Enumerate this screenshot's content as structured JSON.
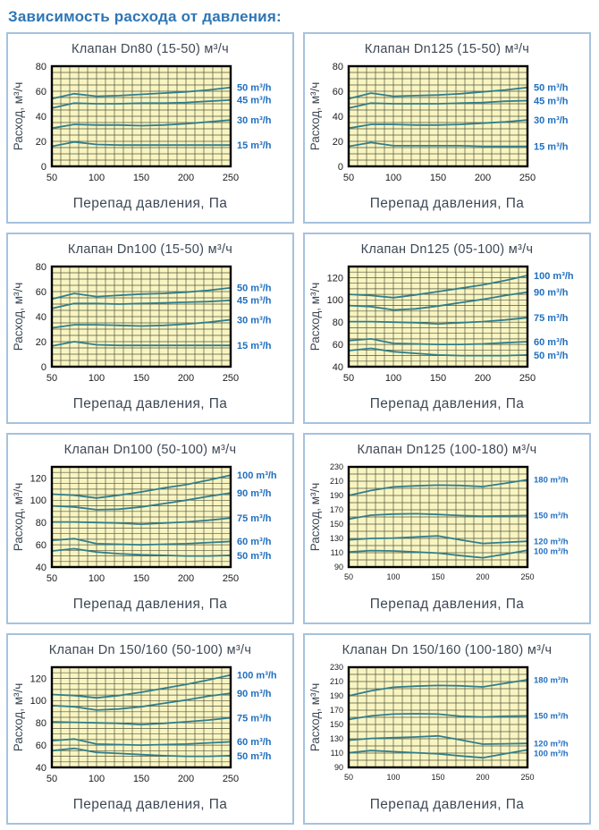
{
  "page": {
    "title": "Зависимость расхода от давления:"
  },
  "colors": {
    "header_blue": "#2e76b5",
    "panel_border": "#a6c2dd",
    "text": "#3d4854",
    "tick_text": "#1c1c1c",
    "plot_bg": "#f9f5c2",
    "grid": "#53563f",
    "curve": "#2f7e8c",
    "series_label": "#2170bf"
  },
  "chart_data": [
    {
      "type": "line",
      "title": "Клапан Dn80 (15-50) м³/ч",
      "xlabel": "Перепад давления, Па",
      "ylabel": "Расход, м³/ч",
      "x": [
        50,
        75,
        100,
        125,
        150,
        175,
        200,
        225,
        250
      ],
      "xlim": [
        50,
        250
      ],
      "ylim": [
        0,
        80
      ],
      "xticks": [
        50,
        100,
        150,
        200,
        250
      ],
      "yticks": [
        80,
        60,
        40,
        20,
        0
      ],
      "x_minor_step": 10,
      "y_minor_step": 5,
      "grid": true,
      "legend_position": "right",
      "small_fonts": false,
      "series": [
        {
          "name": "50 m³/h",
          "values": [
            54,
            58,
            56,
            56.5,
            57.5,
            58.5,
            59.5,
            61,
            63
          ]
        },
        {
          "name": "45 m³/h",
          "values": [
            46.5,
            50.5,
            50,
            50,
            50.5,
            50.5,
            51,
            52,
            53
          ]
        },
        {
          "name": "30 m³/h",
          "values": [
            30.5,
            33.5,
            33,
            33,
            32.5,
            33,
            34,
            35.5,
            37
          ]
        },
        {
          "name": "15 m³/h",
          "values": [
            16,
            19.5,
            17.5,
            17,
            17,
            17,
            17,
            17,
            17
          ]
        }
      ]
    },
    {
      "type": "line",
      "title": "Клапан Dn125 (15-50) м³/ч",
      "xlabel": "Перепад давления, Па",
      "ylabel": "Расход, м³/ч",
      "x": [
        50,
        75,
        100,
        125,
        150,
        175,
        200,
        225,
        250
      ],
      "xlim": [
        50,
        250
      ],
      "ylim": [
        0,
        80
      ],
      "xticks": [
        50,
        100,
        150,
        200,
        250
      ],
      "yticks": [
        80,
        60,
        40,
        20,
        0
      ],
      "x_minor_step": 10,
      "y_minor_step": 5,
      "grid": true,
      "legend_position": "right",
      "small_fonts": false,
      "series": [
        {
          "name": "50 m³/h",
          "values": [
            54,
            58.5,
            56,
            56.5,
            57,
            58,
            59.5,
            61,
            63
          ]
        },
        {
          "name": "45 m³/h",
          "values": [
            46.5,
            50.5,
            50,
            50,
            50,
            50.5,
            51,
            52,
            52.5
          ]
        },
        {
          "name": "30 m³/h",
          "values": [
            30.5,
            33.5,
            33.5,
            33,
            33,
            33.5,
            34.5,
            35.5,
            37
          ]
        },
        {
          "name": "15 m³/h",
          "values": [
            16,
            19,
            16.5,
            16.5,
            16.5,
            16.5,
            16,
            16,
            16
          ]
        }
      ]
    },
    {
      "type": "line",
      "title": "Клапан Dn100 (15-50) м³/ч",
      "xlabel": "Перепад давления, Па",
      "ylabel": "Расход, м³/ч",
      "x": [
        50,
        75,
        100,
        125,
        150,
        175,
        200,
        225,
        250
      ],
      "xlim": [
        50,
        250
      ],
      "ylim": [
        0,
        80
      ],
      "xticks": [
        50,
        100,
        150,
        200,
        250
      ],
      "yticks": [
        80,
        60,
        40,
        20,
        0
      ],
      "x_minor_step": 10,
      "y_minor_step": 5,
      "grid": true,
      "legend_position": "right",
      "small_fonts": false,
      "series": [
        {
          "name": "50 m³/h",
          "values": [
            54,
            58.5,
            56,
            57,
            58,
            58.5,
            59.5,
            61,
            63
          ]
        },
        {
          "name": "45 m³/h",
          "values": [
            46.5,
            50.5,
            50.5,
            50,
            50.5,
            51,
            51.5,
            52,
            53
          ]
        },
        {
          "name": "30 m³/h",
          "values": [
            31,
            33.5,
            33.5,
            33,
            32.5,
            33,
            34,
            35.5,
            37.5
          ]
        },
        {
          "name": "15 m³/h",
          "values": [
            16.5,
            20,
            17.5,
            17,
            17,
            17,
            17,
            17,
            17
          ]
        }
      ]
    },
    {
      "type": "line",
      "title": "Клапан Dn125 (05-100) м³/ч",
      "xlabel": "Перепад давления, Па",
      "ylabel": "Расход, м³/ч",
      "x": [
        50,
        75,
        100,
        125,
        150,
        175,
        200,
        225,
        250
      ],
      "xlim": [
        50,
        250
      ],
      "ylim": [
        40,
        130
      ],
      "xticks": [
        50,
        100,
        150,
        200,
        250
      ],
      "yticks": [
        120,
        100,
        80,
        60,
        40
      ],
      "x_minor_step": 10,
      "y_minor_step": 5,
      "grid": true,
      "legend_position": "right",
      "small_fonts": false,
      "series": [
        {
          "name": "100 m³/h",
          "values": [
            105,
            104,
            102,
            104.5,
            107.5,
            110.5,
            113.5,
            117.5,
            122
          ]
        },
        {
          "name": "90 m³/h",
          "values": [
            95,
            94,
            91,
            92,
            94.5,
            97.5,
            100.5,
            104,
            107
          ]
        },
        {
          "name": "75 m³/h",
          "values": [
            80.5,
            80.5,
            80,
            79.5,
            78.5,
            79.5,
            80.5,
            82,
            84
          ]
        },
        {
          "name": "60 m³/h",
          "values": [
            63.5,
            65,
            61,
            60.5,
            60,
            60,
            60.5,
            61.5,
            62.5
          ]
        },
        {
          "name": "50 m³/h",
          "values": [
            54.5,
            56.5,
            53.5,
            52,
            50.5,
            50,
            50,
            50,
            50.5
          ]
        }
      ]
    },
    {
      "type": "line",
      "title": "Клапан Dn100 (50-100) м³/ч",
      "xlabel": "Перепад давления, Па",
      "ylabel": "Расход, м³/ч",
      "x": [
        50,
        75,
        100,
        125,
        150,
        175,
        200,
        225,
        250
      ],
      "xlim": [
        50,
        250
      ],
      "ylim": [
        40,
        130
      ],
      "xticks": [
        50,
        100,
        150,
        200,
        250
      ],
      "yticks": [
        120,
        100,
        80,
        60,
        40
      ],
      "x_minor_step": 10,
      "y_minor_step": 5,
      "grid": true,
      "legend_position": "right",
      "small_fonts": false,
      "series": [
        {
          "name": "100 m³/h",
          "values": [
            105.5,
            104.5,
            102,
            104.5,
            107.5,
            111,
            114,
            118,
            122.5
          ]
        },
        {
          "name": "90 m³/h",
          "values": [
            95,
            94,
            91.5,
            92,
            94,
            97,
            100,
            103.5,
            106.5
          ]
        },
        {
          "name": "75 m³/h",
          "values": [
            80.5,
            80.5,
            80,
            79.5,
            78.5,
            79.5,
            80.5,
            82,
            84
          ]
        },
        {
          "name": "60 m³/h",
          "values": [
            64,
            65.5,
            61,
            60.5,
            60,
            60.5,
            61,
            62,
            63
          ]
        },
        {
          "name": "50 m³/h",
          "values": [
            54.5,
            56.5,
            53.5,
            52,
            51,
            50.5,
            50,
            50,
            50.5
          ]
        }
      ]
    },
    {
      "type": "line",
      "title": "Клапан Dn125 (100-180) м³/ч",
      "xlabel": "Перепад давления, Па",
      "ylabel": "Расход, м³/ч",
      "x": [
        50,
        75,
        100,
        125,
        150,
        175,
        200,
        225,
        250
      ],
      "xlim": [
        50,
        250
      ],
      "ylim": [
        90,
        230
      ],
      "xticks": [
        50,
        100,
        150,
        200,
        250
      ],
      "yticks": [
        230,
        210,
        190,
        170,
        150,
        130,
        110,
        90
      ],
      "x_minor_step": 10,
      "y_minor_step": 10,
      "grid": true,
      "legend_position": "right",
      "small_fonts": true,
      "series": [
        {
          "name": "180 m³/h",
          "values": [
            190,
            197,
            202,
            203.5,
            204.5,
            204,
            202.5,
            207,
            212
          ]
        },
        {
          "name": "150 m³/h",
          "values": [
            157,
            162.5,
            164,
            164.5,
            163.5,
            162,
            161,
            161.5,
            162
          ]
        },
        {
          "name": "120 m³/h",
          "values": [
            128,
            130,
            130.5,
            132,
            133.5,
            128,
            123,
            124.5,
            126
          ]
        },
        {
          "name": "100 m³/h",
          "values": [
            111,
            113,
            112.5,
            111,
            109.5,
            106,
            103,
            108,
            113.5
          ]
        }
      ]
    },
    {
      "type": "line",
      "title": "Клапан Dn 150/160 (50-100) м³/ч",
      "xlabel": "Перепад давления, Па",
      "ylabel": "Расход, м³/ч",
      "x": [
        50,
        75,
        100,
        125,
        150,
        175,
        200,
        225,
        250
      ],
      "xlim": [
        50,
        250
      ],
      "ylim": [
        40,
        130
      ],
      "xticks": [
        50,
        100,
        150,
        200,
        250
      ],
      "yticks": [
        120,
        100,
        80,
        60,
        40
      ],
      "x_minor_step": 10,
      "y_minor_step": 5,
      "grid": true,
      "legend_position": "right",
      "small_fonts": false,
      "series": [
        {
          "name": "100 m³/h",
          "values": [
            105.5,
            104.5,
            102.5,
            104.5,
            107.5,
            111,
            114.5,
            118.5,
            123
          ]
        },
        {
          "name": "90 m³/h",
          "values": [
            95.5,
            94.5,
            91.5,
            92.5,
            94.5,
            97.5,
            100.5,
            104,
            106.5
          ]
        },
        {
          "name": "75 m³/h",
          "values": [
            81,
            80.5,
            80,
            79.5,
            78.5,
            79.5,
            81,
            82.5,
            84.5
          ]
        },
        {
          "name": "60 m³/h",
          "values": [
            64,
            65.5,
            61,
            60.5,
            60,
            60.5,
            61,
            62,
            63
          ]
        },
        {
          "name": "50 m³/h",
          "values": [
            55,
            57,
            53.5,
            52.5,
            51.5,
            50.5,
            50,
            50,
            50.5
          ]
        }
      ]
    },
    {
      "type": "line",
      "title": "Клапан Dn 150/160 (100-180) м³/ч",
      "xlabel": "Перепад давления, Па",
      "ylabel": "Расход, м³/ч",
      "x": [
        50,
        75,
        100,
        125,
        150,
        175,
        200,
        225,
        250
      ],
      "xlim": [
        50,
        250
      ],
      "ylim": [
        90,
        230
      ],
      "xticks": [
        50,
        100,
        150,
        200,
        250
      ],
      "yticks": [
        230,
        210,
        190,
        170,
        150,
        130,
        110,
        90
      ],
      "x_minor_step": 10,
      "y_minor_step": 10,
      "grid": true,
      "legend_position": "right",
      "small_fonts": true,
      "series": [
        {
          "name": "180 m³/h",
          "values": [
            190,
            197,
            202,
            203.5,
            204.5,
            204,
            202.5,
            207.5,
            212.5
          ]
        },
        {
          "name": "150 m³/h",
          "values": [
            157,
            162,
            164.5,
            165,
            164.5,
            161.5,
            160.5,
            161.5,
            162
          ]
        },
        {
          "name": "120 m³/h",
          "values": [
            128,
            130.5,
            131.5,
            132.5,
            134,
            128.5,
            122.5,
            123,
            123.5
          ]
        },
        {
          "name": "100 m³/h",
          "values": [
            110.5,
            113.5,
            112,
            110.5,
            109,
            106,
            103.5,
            109,
            114.5
          ]
        }
      ]
    }
  ]
}
